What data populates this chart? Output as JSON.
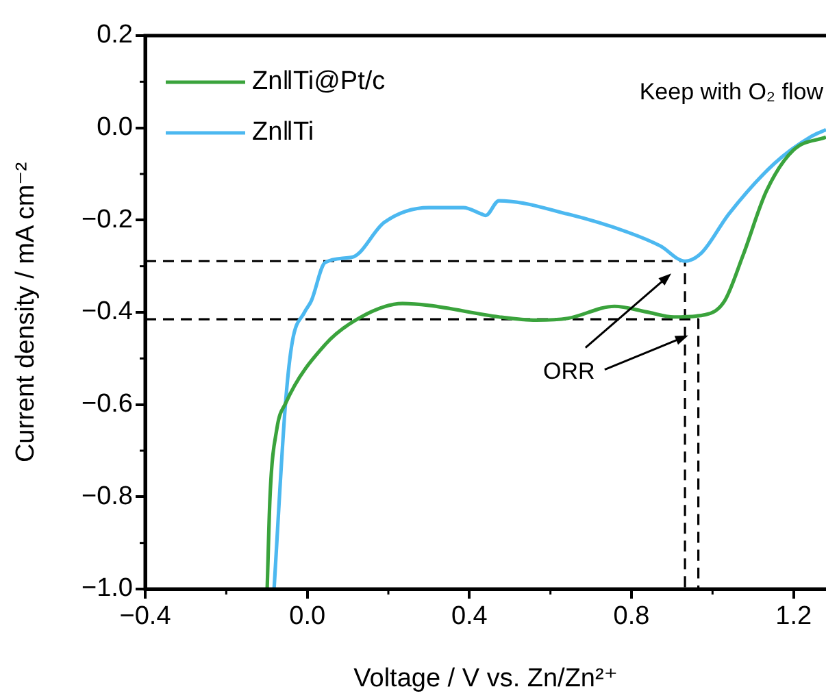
{
  "chart_data": {
    "type": "line",
    "xlabel": "Voltage / V vs. Zn/Zn²⁺",
    "ylabel": "Current density / mA cm⁻²",
    "xlim": [
      -0.4,
      1.28
    ],
    "xticks": [
      {
        "value": -0.4,
        "label": "−0.4"
      },
      {
        "value": 0,
        "label": "0.0"
      },
      0.4,
      0.8,
      1.2
    ],
    "ylim": [
      -1.0,
      0.2
    ],
    "yticks": [
      {
        "value": -1.0,
        "label": "−1.0"
      },
      {
        "value": -0.8,
        "label": "−0.8"
      },
      {
        "value": -0.6,
        "label": "−0.6"
      },
      {
        "value": -0.4,
        "label": "−0.4"
      },
      {
        "value": -0.2,
        "label": "−0.2"
      },
      {
        "value": 0,
        "label": "0.0"
      },
      0.2
    ],
    "grid": false,
    "legend": "top left",
    "marker": "none",
    "series": [
      {
        "name": "Zn‖Ti@Pt/c",
        "color": "#3aa33c",
        "x": [
          -0.099,
          -0.092,
          -0.075,
          -0.054,
          0.044,
          0.133,
          0.235,
          0.3,
          0.473,
          0.565,
          0.643,
          0.758,
          0.837,
          0.905,
          0.983,
          1.03,
          1.075,
          1.133,
          1.2,
          1.28
        ],
        "values": [
          -1.0,
          -0.8,
          -0.652,
          -0.598,
          -0.47,
          -0.41,
          -0.381,
          -0.385,
          -0.41,
          -0.417,
          -0.413,
          -0.387,
          -0.399,
          -0.41,
          -0.405,
          -0.375,
          -0.277,
          -0.137,
          -0.048,
          -0.02
        ]
      },
      {
        "name": "Zn‖Ti",
        "color": "#4cb8f0",
        "x": [
          -0.082,
          -0.054,
          -0.037,
          -0.007,
          0.01,
          0.044,
          0.112,
          0.19,
          0.3,
          0.385,
          0.43,
          0.44,
          0.473,
          0.643,
          0.79,
          0.871,
          0.932,
          0.973,
          1.04,
          1.153,
          1.245,
          1.28
        ],
        "values": [
          -1.0,
          -0.6,
          -0.464,
          -0.4,
          -0.375,
          -0.292,
          -0.28,
          -0.205,
          -0.173,
          -0.173,
          -0.187,
          -0.19,
          -0.158,
          -0.187,
          -0.226,
          -0.256,
          -0.289,
          -0.271,
          -0.187,
          -0.077,
          -0.018,
          -0.004
        ]
      },
      {
        "color": "#000000",
        "line_style": "dashed",
        "x": [
          -0.4,
          0.932,
          0.932
        ],
        "values": [
          -0.289,
          -0.289,
          -1.0
        ]
      },
      {
        "color": "#000000",
        "line_style": "dashed",
        "x": [
          -0.4,
          0.965,
          0.965
        ],
        "values": [
          -0.415,
          -0.415,
          -1.0
        ]
      }
    ],
    "annotations": [
      "Keep with O₂ flow",
      {
        "text": "ORR",
        "x": 0.94,
        "y": -0.45
      }
    ]
  }
}
